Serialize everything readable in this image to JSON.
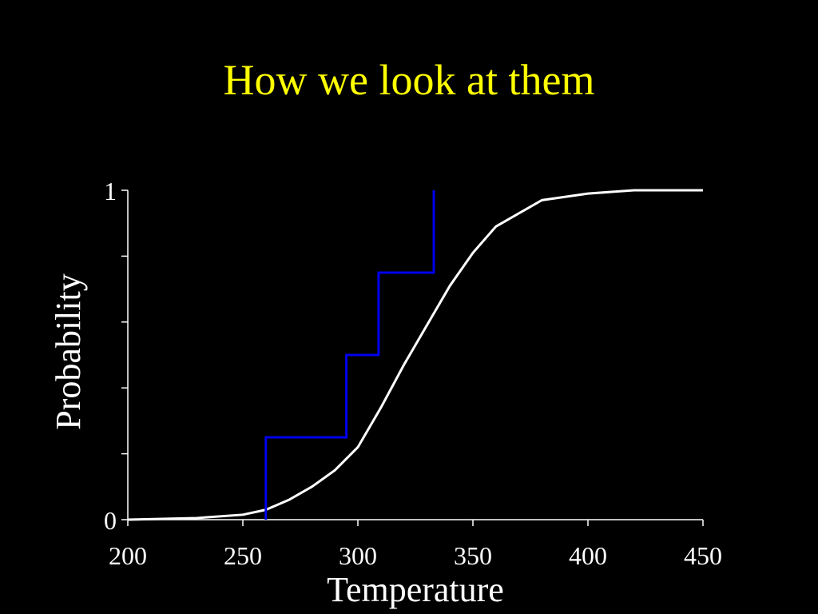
{
  "chart_data": {
    "type": "line",
    "title": "How we look at them",
    "x_label": "Temperature",
    "y_label": "Probability",
    "xlim": [
      200,
      450
    ],
    "xticks": [
      200,
      250,
      300,
      350,
      400,
      450
    ],
    "ylim": [
      0,
      1
    ],
    "yticks": [
      0,
      1
    ],
    "yminor_ticks": [
      0.2,
      0.4,
      0.6,
      0.8
    ],
    "series": [
      {
        "color": "#ffffff",
        "x": [
          200,
          230,
          250,
          260,
          270,
          280,
          290,
          300,
          310,
          320,
          330,
          340,
          350,
          360,
          370,
          380,
          390,
          400,
          420,
          450
        ],
        "values": [
          0,
          0.005,
          0.015,
          0.03,
          0.06,
          0.1,
          0.15,
          0.22,
          0.34,
          0.47,
          0.59,
          0.71,
          0.81,
          0.89,
          0.93,
          0.97,
          0.98,
          0.99,
          1,
          1
        ]
      },
      {
        "color": "#0000ee",
        "x": [
          260,
          260,
          295,
          295,
          309,
          309,
          333,
          333
        ],
        "values": [
          0,
          0.25,
          0.25,
          0.5,
          0.5,
          0.75,
          0.75,
          1
        ]
      }
    ]
  }
}
